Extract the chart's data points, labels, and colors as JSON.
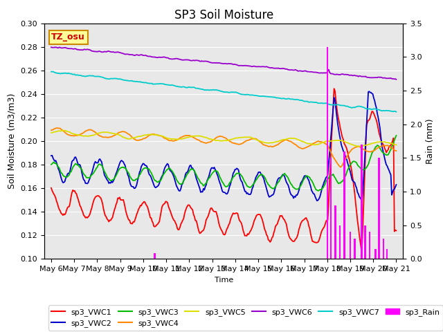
{
  "title": "SP3 Soil Moisture",
  "ylabel_left": "Soil Moisture (m3/m3)",
  "ylabel_right": "Rain (mm)",
  "xlabel": "Time",
  "ylim_left": [
    0.1,
    0.3
  ],
  "ylim_right": [
    0.0,
    3.5
  ],
  "bg_color": "#e8e8e8",
  "annotation_text": "TZ_osu",
  "annotation_bg": "#ffff99",
  "annotation_border": "#cc8800",
  "colors": {
    "sp3_VWC1": "#ff0000",
    "sp3_VWC2": "#0000cc",
    "sp3_VWC3": "#00bb00",
    "sp3_VWC4": "#ff8800",
    "sp3_VWC5": "#dddd00",
    "sp3_VWC6": "#9900cc",
    "sp3_VWC7": "#00cccc",
    "sp3_Rain": "#ff00ff"
  },
  "xtick_labels": [
    "May 6",
    "May 7",
    "May 8",
    "May 9",
    "May 10",
    "May 11",
    "May 12",
    "May 13",
    "May 14",
    "May 15",
    "May 16",
    "May 17",
    "May 18",
    "May 19",
    "May 20",
    "May 21"
  ],
  "xtick_positions": [
    0,
    1,
    2,
    3,
    4,
    5,
    6,
    7,
    8,
    9,
    10,
    11,
    12,
    13,
    14,
    15
  ]
}
